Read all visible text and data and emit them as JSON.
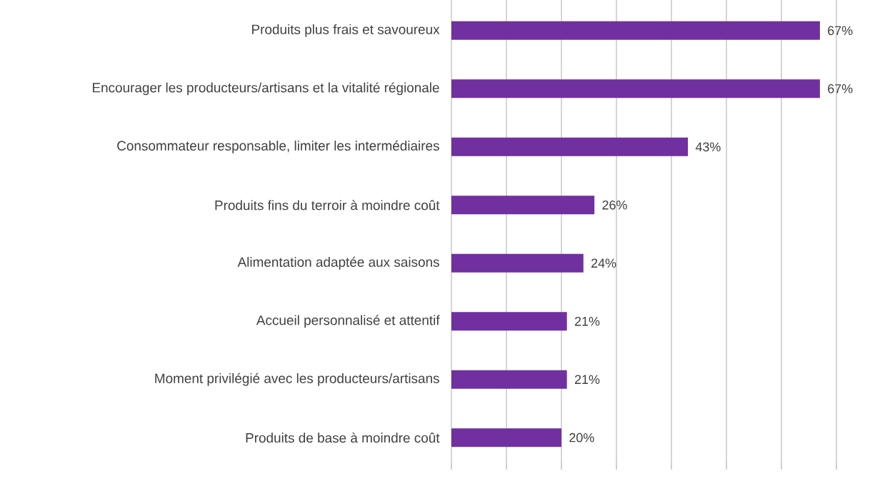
{
  "chart_data": {
    "type": "bar",
    "orientation": "horizontal",
    "categories": [
      "Produits plus frais et savoureux",
      "Encourager les producteurs/artisans et la vitalité régionale",
      "Consommateur responsable, limiter les intermédiaires",
      "Produits fins du terroir à moindre coût",
      "Alimentation adaptée aux saisons",
      "Accueil personnalisé et attentif",
      "Moment privilégié avec les producteurs/artisans",
      "Produits de base à moindre coût"
    ],
    "values": [
      67,
      67,
      43,
      26,
      24,
      21,
      21,
      20
    ],
    "value_labels": [
      "67%",
      "67%",
      "43%",
      "26%",
      "24%",
      "21%",
      "21%",
      "20%"
    ],
    "color": "#7030a0",
    "xlim": [
      0,
      70
    ],
    "xticks": [
      {
        "value": 0,
        "label": null
      },
      {
        "value": 10,
        "label": null
      },
      {
        "value": 20,
        "label": null
      },
      {
        "value": 30,
        "label": null
      },
      {
        "value": 40,
        "label": null
      },
      {
        "value": 50,
        "label": null
      },
      {
        "value": 60,
        "label": null
      },
      {
        "value": 70,
        "label": null
      }
    ],
    "grid": "x",
    "tick_labels": "y"
  }
}
